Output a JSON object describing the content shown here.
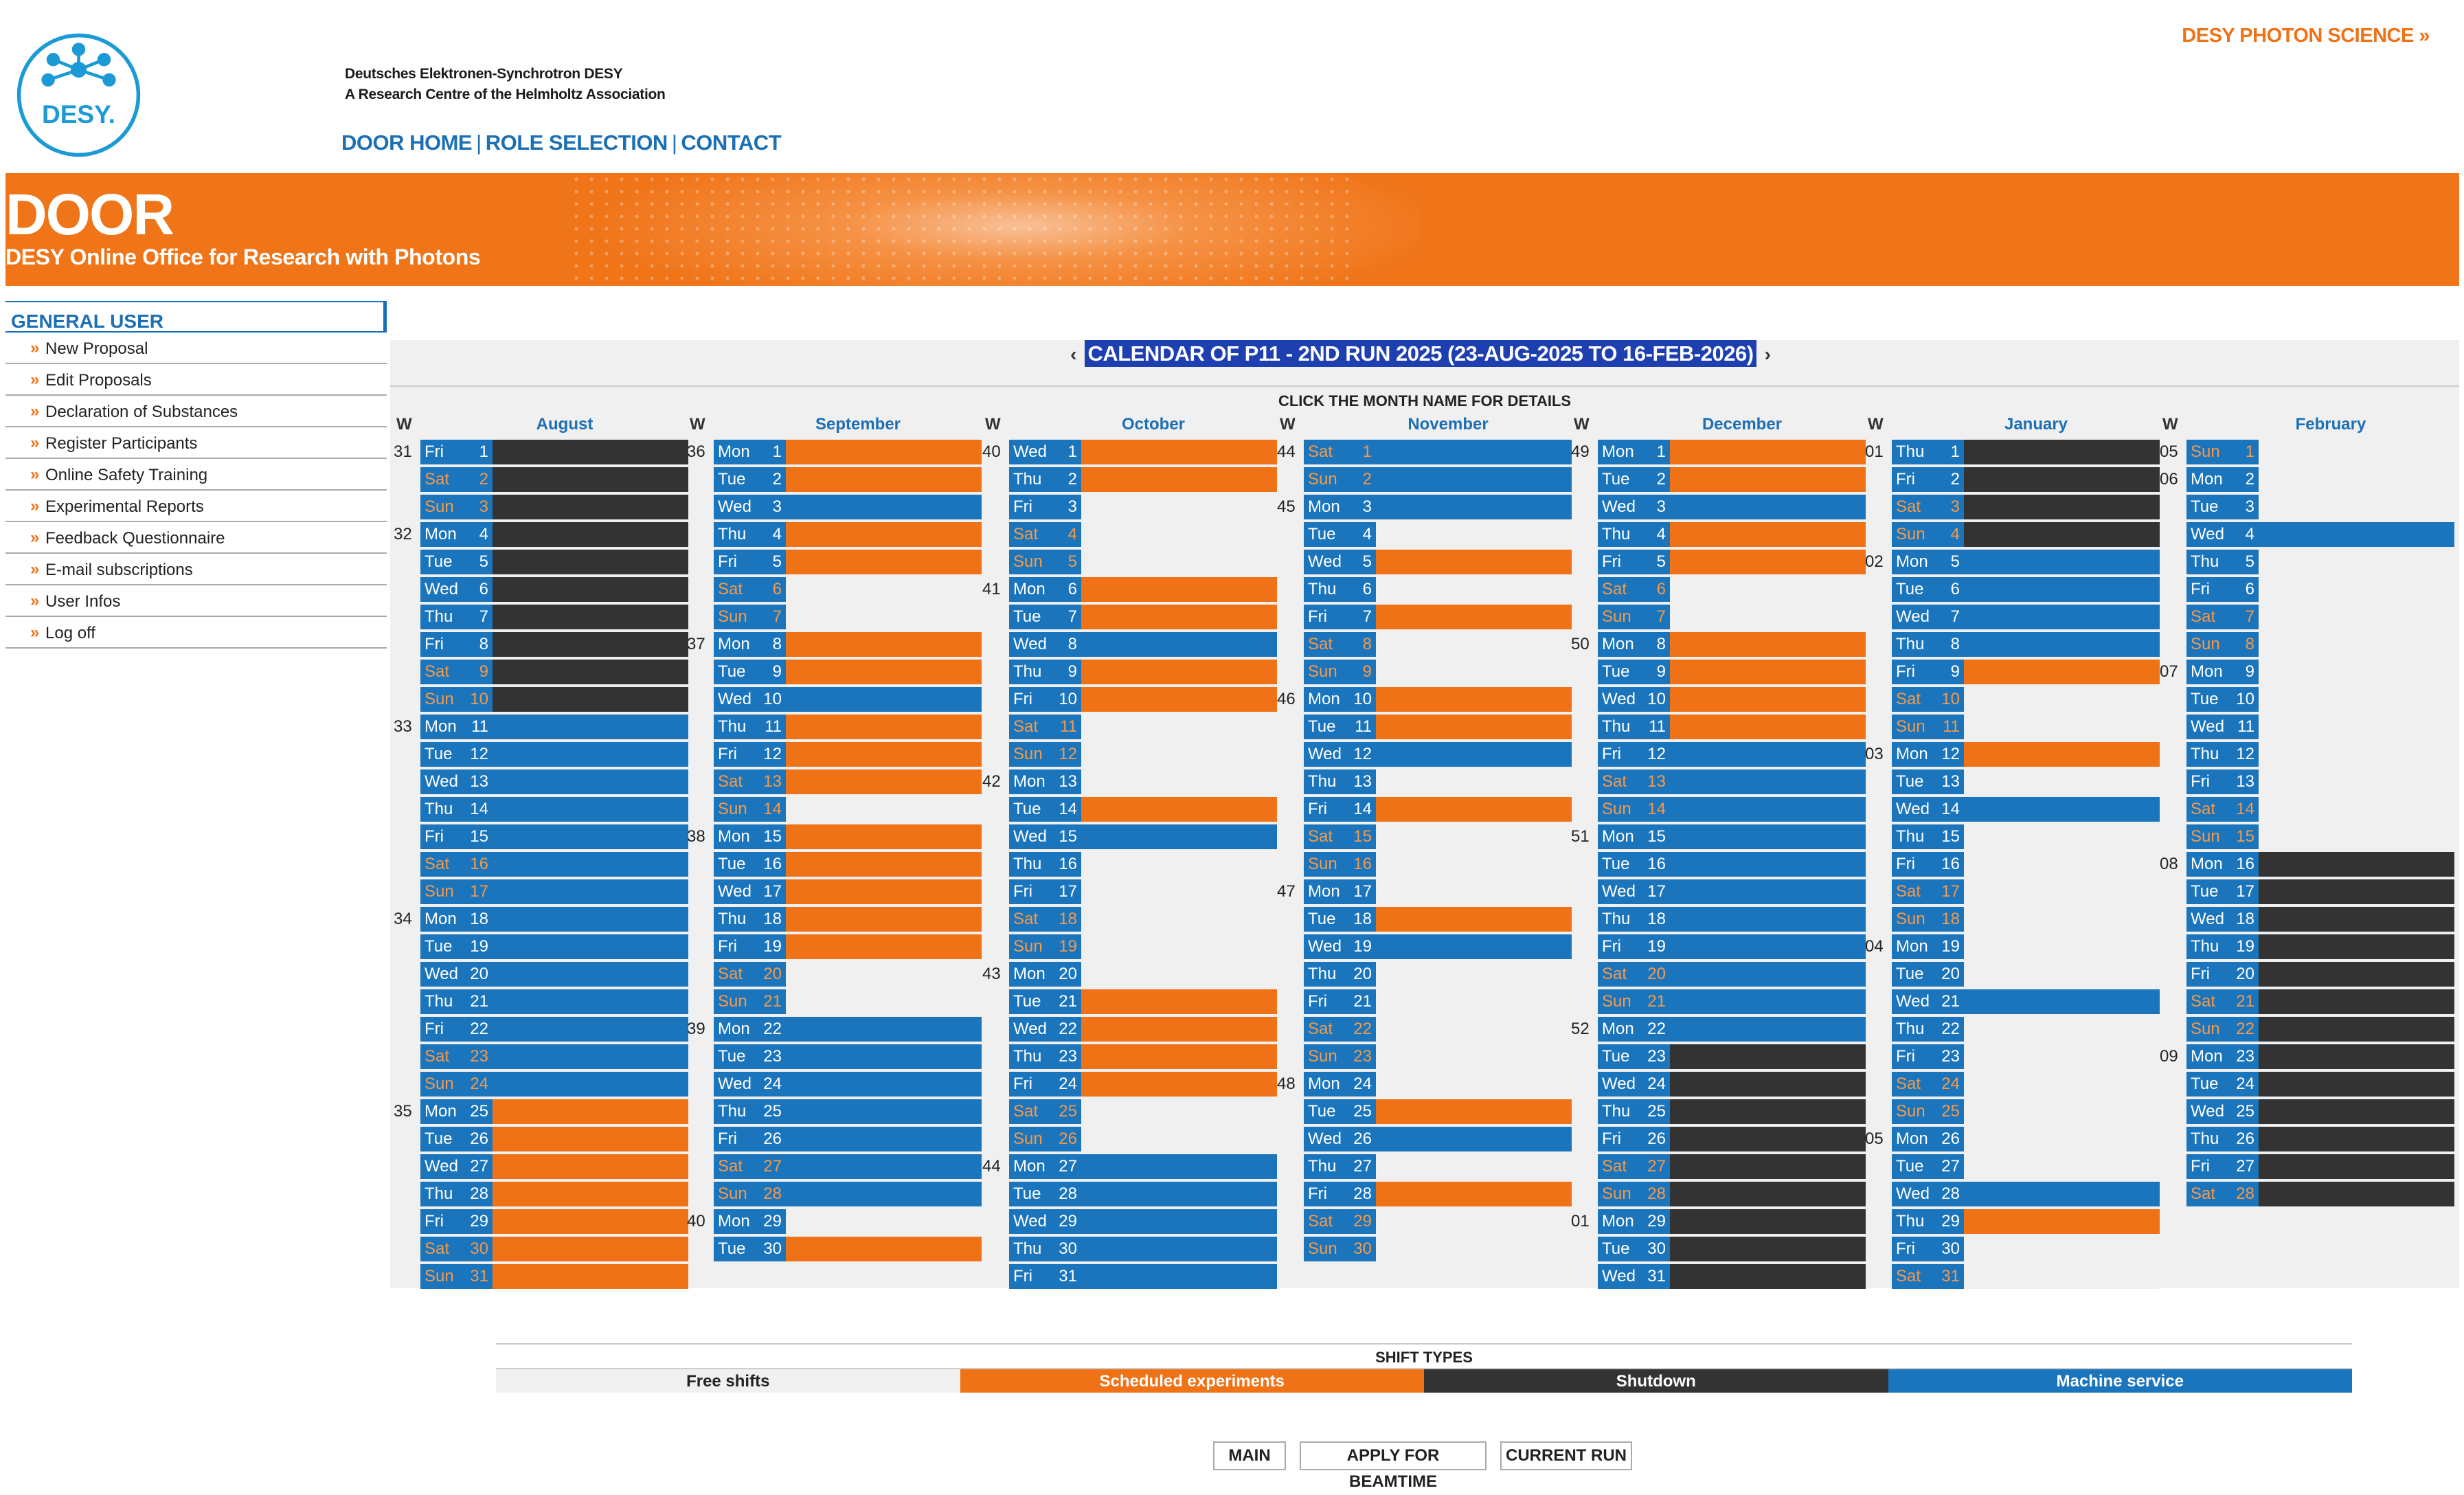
{
  "header": {
    "institution_line1": "Deutsches Elektronen-Synchrotron DESY",
    "institution_line2": "A Research Centre of the Helmholtz Association",
    "logo_text": "DESY.",
    "photon_link": "DESY PHOTON SCIENCE »",
    "nav": [
      "DOOR HOME",
      "ROLE SELECTION",
      "CONTACT"
    ]
  },
  "banner": {
    "title": "DOOR",
    "subtitle": "DESY Online Office for Research with Photons"
  },
  "sidebar": {
    "heading": "GENERAL USER",
    "items": [
      "New Proposal",
      "Edit Proposals",
      "Declaration of Substances",
      "Register Participants",
      "Online Safety Training",
      "Experimental Reports",
      "Feedback Questionnaire",
      "E-mail subscriptions",
      "User Infos",
      "Log off"
    ]
  },
  "calendar": {
    "title": "CALENDAR OF P11 - 2ND RUN 2025 (23-AUG-2025 TO 16-FEB-2026)",
    "prev": "‹",
    "next": "›",
    "hint": "CLICK THE MONTH NAME FOR DETAILS",
    "week_label": "W",
    "months": [
      {
        "name": "August",
        "first_dow": 5,
        "days": 31,
        "weeks": {
          "1": "31",
          "4": "32",
          "11": "33",
          "18": "34",
          "25": "35"
        },
        "shifts": {
          "1": "D",
          "2": "D",
          "3": "D",
          "4": "D",
          "5": "D",
          "6": "D",
          "7": "D",
          "8": "D",
          "9": "D",
          "10": "D",
          "11": "M",
          "12": "M",
          "13": "M",
          "14": "M",
          "15": "M",
          "16": "M",
          "17": "M",
          "18": "M",
          "19": "M",
          "20": "M",
          "21": "M",
          "22": "M",
          "23": "M",
          "24": "M",
          "25": "S",
          "26": "S",
          "27": "S",
          "28": "S",
          "29": "S",
          "30": "S",
          "31": "S"
        }
      },
      {
        "name": "September",
        "first_dow": 1,
        "days": 30,
        "weeks": {
          "1": "36",
          "8": "37",
          "15": "38",
          "22": "39",
          "29": "40"
        },
        "shifts": {
          "1": "S",
          "2": "S",
          "3": "M",
          "4": "S",
          "5": "S",
          "6": "F",
          "7": "F",
          "8": "S",
          "9": "S",
          "10": "M",
          "11": "S",
          "12": "S",
          "13": "S",
          "14": "F",
          "15": "S",
          "16": "S",
          "17": "S",
          "18": "S",
          "19": "S",
          "20": "F",
          "21": "F",
          "22": "M",
          "23": "M",
          "24": "M",
          "25": "M",
          "26": "M",
          "27": "M",
          "28": "M",
          "29": "F",
          "30": "S"
        }
      },
      {
        "name": "October",
        "first_dow": 3,
        "days": 31,
        "weeks": {
          "1": "40",
          "6": "41",
          "13": "42",
          "20": "43",
          "27": "44"
        },
        "shifts": {
          "1": "S",
          "2": "S",
          "3": "F",
          "4": "F",
          "5": "F",
          "6": "S",
          "7": "S",
          "8": "M",
          "9": "S",
          "10": "S",
          "11": "F",
          "12": "F",
          "13": "F",
          "14": "S",
          "15": "M",
          "16": "F",
          "17": "F",
          "18": "F",
          "19": "F",
          "20": "F",
          "21": "S",
          "22": "S",
          "23": "S",
          "24": "S",
          "25": "F",
          "26": "F",
          "27": "M",
          "28": "M",
          "29": "M",
          "30": "M",
          "31": "M"
        }
      },
      {
        "name": "November",
        "first_dow": 6,
        "days": 30,
        "weeks": {
          "1": "44",
          "3": "45",
          "10": "46",
          "17": "47",
          "24": "48"
        },
        "shifts": {
          "1": "M",
          "2": "M",
          "3": "M",
          "4": "F",
          "5": "S",
          "6": "F",
          "7": "S",
          "8": "F",
          "9": "F",
          "10": "S",
          "11": "S",
          "12": "M",
          "13": "F",
          "14": "S",
          "15": "F",
          "16": "F",
          "17": "F",
          "18": "S",
          "19": "M",
          "20": "F",
          "21": "F",
          "22": "F",
          "23": "F",
          "24": "F",
          "25": "S",
          "26": "M",
          "27": "F",
          "28": "S",
          "29": "F",
          "30": "F"
        }
      },
      {
        "name": "December",
        "first_dow": 1,
        "days": 31,
        "weeks": {
          "1": "49",
          "8": "50",
          "15": "51",
          "22": "52",
          "29": "01"
        },
        "shifts": {
          "1": "S",
          "2": "S",
          "3": "M",
          "4": "S",
          "5": "S",
          "6": "F",
          "7": "F",
          "8": "S",
          "9": "S",
          "10": "S",
          "11": "S",
          "12": "M",
          "13": "M",
          "14": "M",
          "15": "M",
          "16": "M",
          "17": "M",
          "18": "M",
          "19": "M",
          "20": "M",
          "21": "M",
          "22": "M",
          "23": "D",
          "24": "D",
          "25": "D",
          "26": "D",
          "27": "D",
          "28": "D",
          "29": "D",
          "30": "D",
          "31": "D"
        }
      },
      {
        "name": "January",
        "first_dow": 4,
        "days": 31,
        "weeks": {
          "1": "01",
          "5": "02",
          "12": "03",
          "19": "04",
          "26": "05"
        },
        "shifts": {
          "1": "D",
          "2": "D",
          "3": "D",
          "4": "D",
          "5": "M",
          "6": "M",
          "7": "M",
          "8": "M",
          "9": "S",
          "10": "F",
          "11": "F",
          "12": "S",
          "13": "F",
          "14": "M",
          "15": "F",
          "16": "F",
          "17": "F",
          "18": "F",
          "19": "F",
          "20": "F",
          "21": "M",
          "22": "F",
          "23": "F",
          "24": "F",
          "25": "F",
          "26": "F",
          "27": "F",
          "28": "M",
          "29": "S",
          "30": "F",
          "31": "F"
        }
      },
      {
        "name": "February",
        "first_dow": 0,
        "days": 28,
        "weeks": {
          "1": "05",
          "2": "06",
          "9": "07",
          "16": "08",
          "23": "09"
        },
        "shifts": {
          "1": "F",
          "2": "F",
          "3": "F",
          "4": "M",
          "5": "F",
          "6": "F",
          "7": "F",
          "8": "F",
          "9": "F",
          "10": "F",
          "11": "F",
          "12": "F",
          "13": "F",
          "14": "F",
          "15": "F",
          "16": "D",
          "17": "D",
          "18": "D",
          "19": "D",
          "20": "D",
          "21": "D",
          "22": "D",
          "23": "D",
          "24": "D",
          "25": "D",
          "26": "D",
          "27": "D",
          "28": "D"
        }
      }
    ],
    "day_names": [
      "Sun",
      "Mon",
      "Tue",
      "Wed",
      "Thu",
      "Fri",
      "Sat"
    ]
  },
  "legend": {
    "heading": "SHIFT TYPES",
    "types": [
      {
        "label": "Free shifts",
        "color": "#f0f0f0",
        "text": "#222"
      },
      {
        "label": "Scheduled experiments",
        "color": "#f07217",
        "text": "#fff"
      },
      {
        "label": "Shutdown",
        "color": "#333333",
        "text": "#fff"
      },
      {
        "label": "Machine service",
        "color": "#1b75bc",
        "text": "#fff"
      }
    ]
  },
  "buttons": [
    "MAIN",
    "APPLY FOR BEAMTIME",
    "CURRENT RUN"
  ],
  "colors": {
    "free": "#f0f0f0",
    "scheduled": "#f07217",
    "shutdown": "#333333",
    "service": "#1b75bc",
    "accent": "#1b6fb5",
    "orange": "#f07217"
  }
}
